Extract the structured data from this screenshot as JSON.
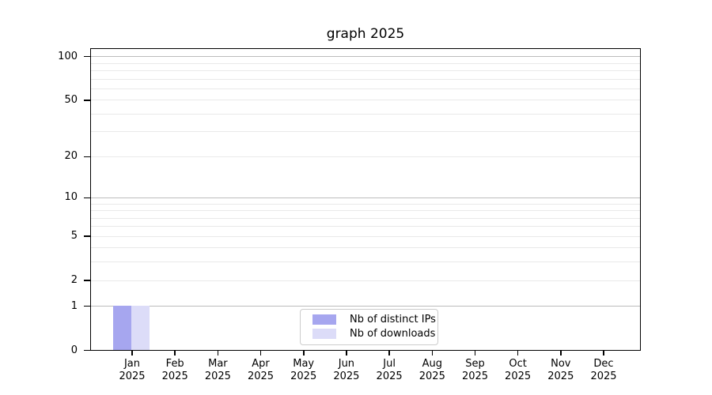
{
  "title": "graph 2025",
  "colors": {
    "distinct_ips": "#a6a6ef",
    "downloads": "#dcdcf8",
    "grid_major": "#bcbcbc",
    "grid_minor": "#e9e9e9",
    "axis": "#000000",
    "legend_border": "#cccccc",
    "background": "#ffffff",
    "text": "#000000"
  },
  "chart_data": {
    "type": "bar",
    "title": "graph 2025",
    "categories": [
      "Jan 2025",
      "Feb 2025",
      "Mar 2025",
      "Apr 2025",
      "May 2025",
      "Jun 2025",
      "Jul 2025",
      "Aug 2025",
      "Sep 2025",
      "Oct 2025",
      "Nov 2025",
      "Dec 2025"
    ],
    "series": [
      {
        "name": "Nb of distinct IPs",
        "color": "#a6a6ef",
        "values": [
          1,
          0,
          0,
          0,
          0,
          0,
          0,
          0,
          0,
          0,
          0,
          0
        ]
      },
      {
        "name": "Nb of downloads",
        "color": "#dcdcf8",
        "values": [
          1,
          0,
          0,
          0,
          0,
          0,
          0,
          0,
          0,
          0,
          0,
          0
        ]
      }
    ],
    "yaxis": {
      "scale": "log1p",
      "tick_values": [
        0,
        1,
        2,
        5,
        10,
        20,
        50,
        100
      ],
      "decade_gridlines": [
        1,
        10,
        100
      ],
      "minor_gridlines": [
        2,
        3,
        4,
        5,
        6,
        7,
        8,
        9,
        20,
        30,
        40,
        50,
        60,
        70,
        80,
        90
      ],
      "range": [
        0,
        113
      ]
    },
    "grid": true,
    "legend_position": "lower center"
  }
}
